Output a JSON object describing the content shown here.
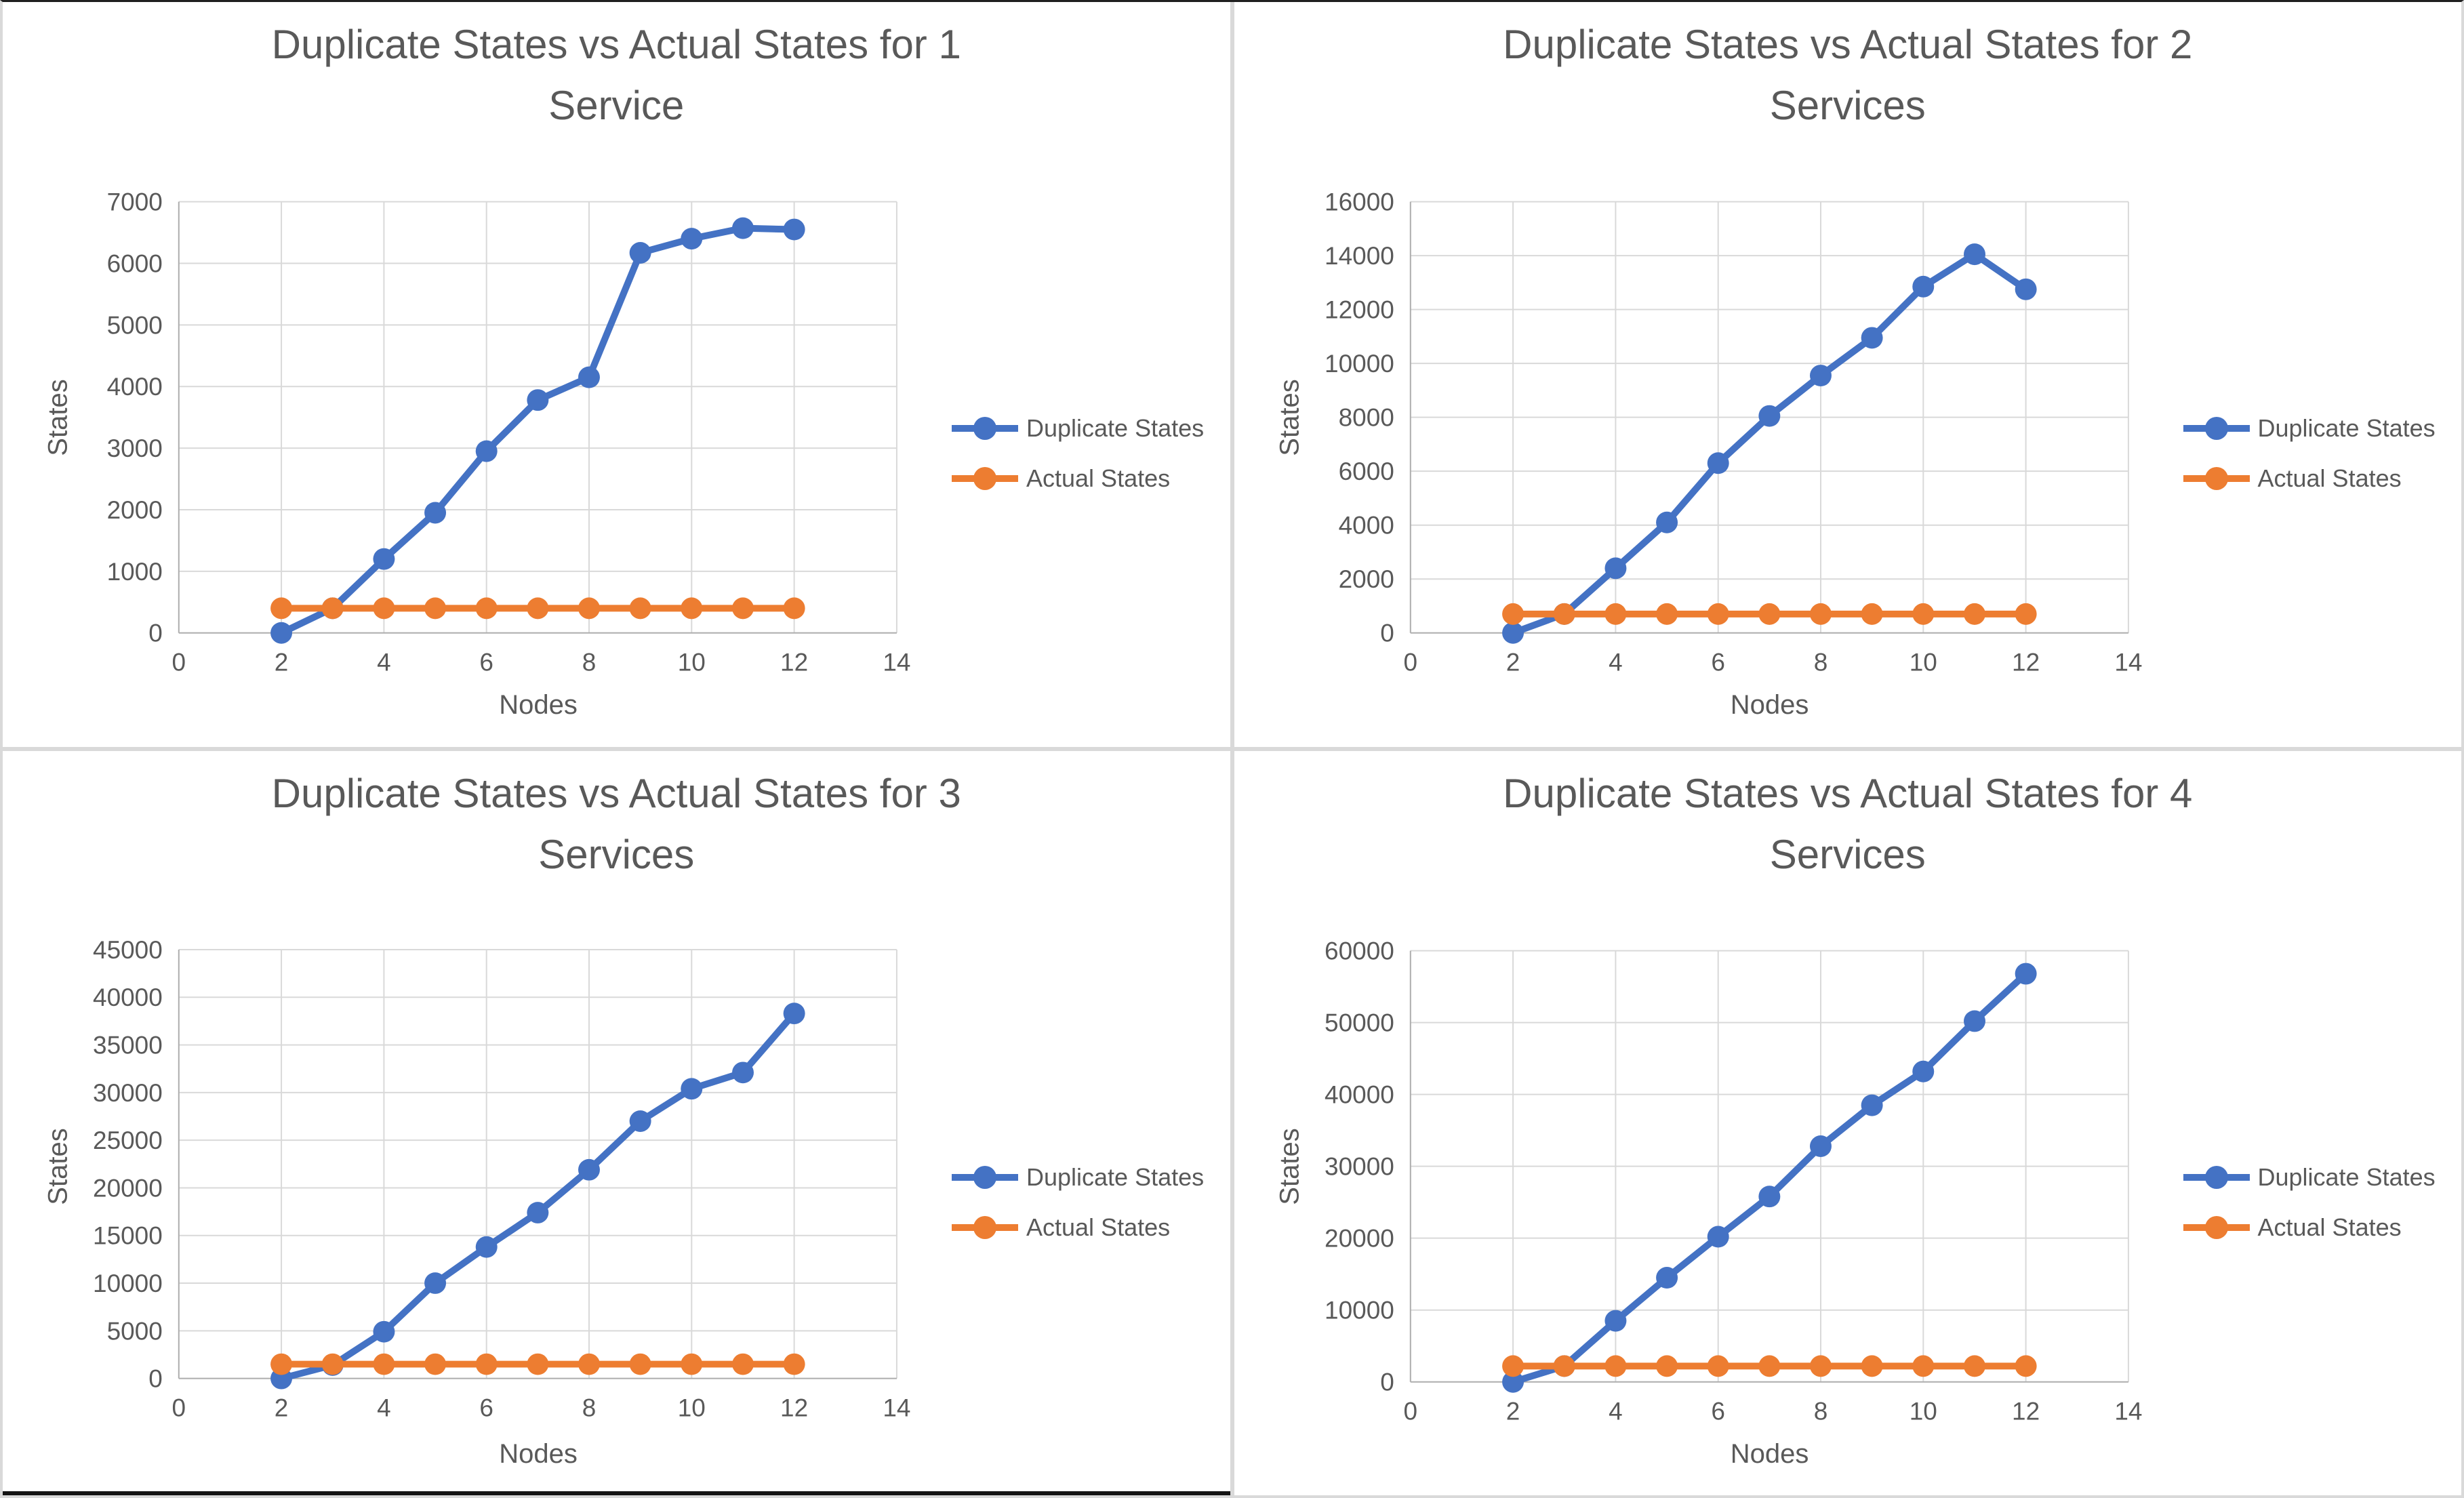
{
  "legend": {
    "duplicate_label": "Duplicate States",
    "actual_label": "Actual States"
  },
  "axes": {
    "x_label": "Nodes",
    "y_label": "States"
  },
  "colors": {
    "duplicate": "#4472C4",
    "actual": "#ED7D31",
    "text": "#595959",
    "grid": "#D9D9D9",
    "axis_line": "#ADADAD"
  },
  "chart_data": [
    {
      "type": "line",
      "title": "Duplicate States vs Actual States for 1 Service",
      "title_line1": "Duplicate States vs Actual States for 1",
      "title_line2": "Service",
      "xlabel": "Nodes",
      "ylabel": "States",
      "x_range": [
        0,
        14
      ],
      "y_range": [
        0,
        7000
      ],
      "x_ticks": [
        0,
        2,
        4,
        6,
        8,
        10,
        12,
        14
      ],
      "y_ticks": [
        0,
        1000,
        2000,
        3000,
        4000,
        5000,
        6000,
        7000
      ],
      "grid": true,
      "legend_position": "right",
      "x": [
        2,
        3,
        4,
        5,
        6,
        7,
        8,
        9,
        10,
        11,
        12
      ],
      "series": [
        {
          "name": "Duplicate States",
          "color": "#4472C4",
          "values": [
            0,
            400,
            1200,
            1950,
            2950,
            3780,
            4150,
            6170,
            6400,
            6570,
            6550
          ]
        },
        {
          "name": "Actual States",
          "color": "#ED7D31",
          "values": [
            400,
            400,
            400,
            400,
            400,
            400,
            400,
            400,
            400,
            400,
            400
          ]
        }
      ]
    },
    {
      "type": "line",
      "title": "Duplicate States vs Actual States for 2 Services",
      "title_line1": "Duplicate States vs Actual States for 2",
      "title_line2": "Services",
      "xlabel": "Nodes",
      "ylabel": "States",
      "x_range": [
        0,
        14
      ],
      "y_range": [
        0,
        16000
      ],
      "x_ticks": [
        0,
        2,
        4,
        6,
        8,
        10,
        12,
        14
      ],
      "y_ticks": [
        0,
        2000,
        4000,
        6000,
        8000,
        10000,
        12000,
        14000,
        16000
      ],
      "grid": true,
      "legend_position": "right",
      "x": [
        2,
        3,
        4,
        5,
        6,
        7,
        8,
        9,
        10,
        11,
        12
      ],
      "series": [
        {
          "name": "Duplicate States",
          "color": "#4472C4",
          "values": [
            0,
            700,
            2400,
            4100,
            6300,
            8050,
            9550,
            10950,
            12850,
            14050,
            12750
          ]
        },
        {
          "name": "Actual States",
          "color": "#ED7D31",
          "values": [
            700,
            700,
            700,
            700,
            700,
            700,
            700,
            700,
            700,
            700,
            700
          ]
        }
      ]
    },
    {
      "type": "line",
      "title": "Duplicate States vs Actual States for 3 Services",
      "title_line1": "Duplicate States vs Actual States for 3",
      "title_line2": "Services",
      "xlabel": "Nodes",
      "ylabel": "States",
      "x_range": [
        0,
        14
      ],
      "y_range": [
        0,
        45000
      ],
      "x_ticks": [
        0,
        2,
        4,
        6,
        8,
        10,
        12,
        14
      ],
      "y_ticks": [
        0,
        5000,
        10000,
        15000,
        20000,
        25000,
        30000,
        35000,
        40000,
        45000
      ],
      "grid": true,
      "legend_position": "right",
      "x": [
        2,
        3,
        4,
        5,
        6,
        7,
        8,
        9,
        10,
        11,
        12
      ],
      "series": [
        {
          "name": "Duplicate States",
          "color": "#4472C4",
          "values": [
            0,
            1400,
            4900,
            10000,
            13800,
            17400,
            21900,
            27000,
            30400,
            32100,
            38300
          ]
        },
        {
          "name": "Actual States",
          "color": "#ED7D31",
          "values": [
            1500,
            1500,
            1500,
            1500,
            1500,
            1500,
            1500,
            1500,
            1500,
            1500,
            1500
          ]
        }
      ]
    },
    {
      "type": "line",
      "title": "Duplicate States vs Actual States for 4 Services",
      "title_line1": "Duplicate States vs Actual States for 4",
      "title_line2": "Services",
      "xlabel": "Nodes",
      "ylabel": "States",
      "x_range": [
        0,
        14
      ],
      "y_range": [
        0,
        60000
      ],
      "x_ticks": [
        0,
        2,
        4,
        6,
        8,
        10,
        12,
        14
      ],
      "y_ticks": [
        0,
        10000,
        20000,
        30000,
        40000,
        50000,
        60000
      ],
      "grid": true,
      "legend_position": "right",
      "x": [
        2,
        3,
        4,
        5,
        6,
        7,
        8,
        9,
        10,
        11,
        12
      ],
      "series": [
        {
          "name": "Duplicate States",
          "color": "#4472C4",
          "values": [
            0,
            2200,
            8500,
            14500,
            20200,
            25800,
            32800,
            38500,
            43200,
            50200,
            56800
          ]
        },
        {
          "name": "Actual States",
          "color": "#ED7D31",
          "values": [
            2200,
            2200,
            2200,
            2200,
            2200,
            2200,
            2200,
            2200,
            2200,
            2200,
            2200
          ]
        }
      ]
    }
  ]
}
